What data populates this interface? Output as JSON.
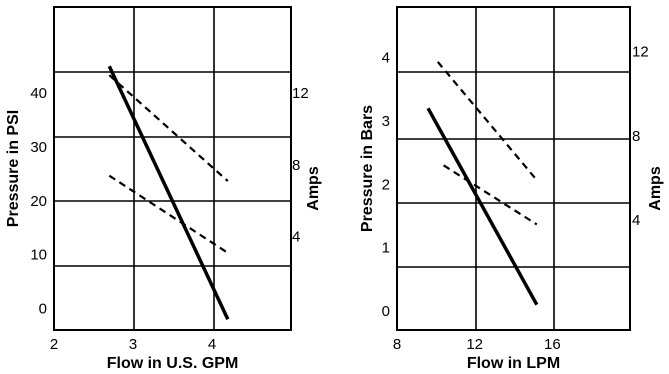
{
  "chart_data": [
    {
      "type": "line",
      "xlabel": "Flow in U.S. GPM",
      "ylabel": "Pressure in PSI",
      "y2label": "Amps",
      "xlim": [
        2,
        5
      ],
      "ylim": [
        -4,
        56
      ],
      "y2lim": [
        -1.2,
        16.8
      ],
      "x_ticks": [
        "2",
        "3",
        "4"
      ],
      "y_ticks": [
        "0",
        "10",
        "20",
        "30",
        "40"
      ],
      "y2_ticks": [
        "4",
        "8",
        "12"
      ],
      "grid": true,
      "series": [
        {
          "style": "solid",
          "axis": "left",
          "x": [
            2.7,
            4.2
          ],
          "y": [
            45,
            -2
          ]
        },
        {
          "style": "dashed",
          "axis": "right",
          "x": [
            2.7,
            4.2
          ],
          "y": [
            13.0,
            7.1
          ]
        },
        {
          "style": "dashed",
          "axis": "right",
          "x": [
            2.7,
            4.2
          ],
          "y": [
            7.4,
            3.1
          ]
        }
      ]
    },
    {
      "type": "line",
      "xlabel": "Flow in LPM",
      "ylabel": "Pressure in Bars",
      "y2label": "Amps",
      "xlim": [
        8,
        20
      ],
      "ylim": [
        -0.3,
        4.8
      ],
      "y2lim": [
        -1.2,
        14.1
      ],
      "x_ticks": [
        "8",
        "12",
        "16"
      ],
      "y_ticks": [
        "0",
        "1",
        "2",
        "3",
        "4"
      ],
      "y2_ticks": [
        "4",
        "8",
        "12"
      ],
      "grid": true,
      "series": [
        {
          "style": "solid",
          "axis": "left",
          "x": [
            9.6,
            15.2
          ],
          "y": [
            3.2,
            0.1
          ]
        },
        {
          "style": "dashed",
          "axis": "right",
          "x": [
            10.1,
            15.2
          ],
          "y": [
            11.5,
            5.9
          ]
        },
        {
          "style": "dashed",
          "axis": "right",
          "x": [
            10.4,
            15.2
          ],
          "y": [
            6.6,
            3.8
          ]
        }
      ]
    }
  ]
}
